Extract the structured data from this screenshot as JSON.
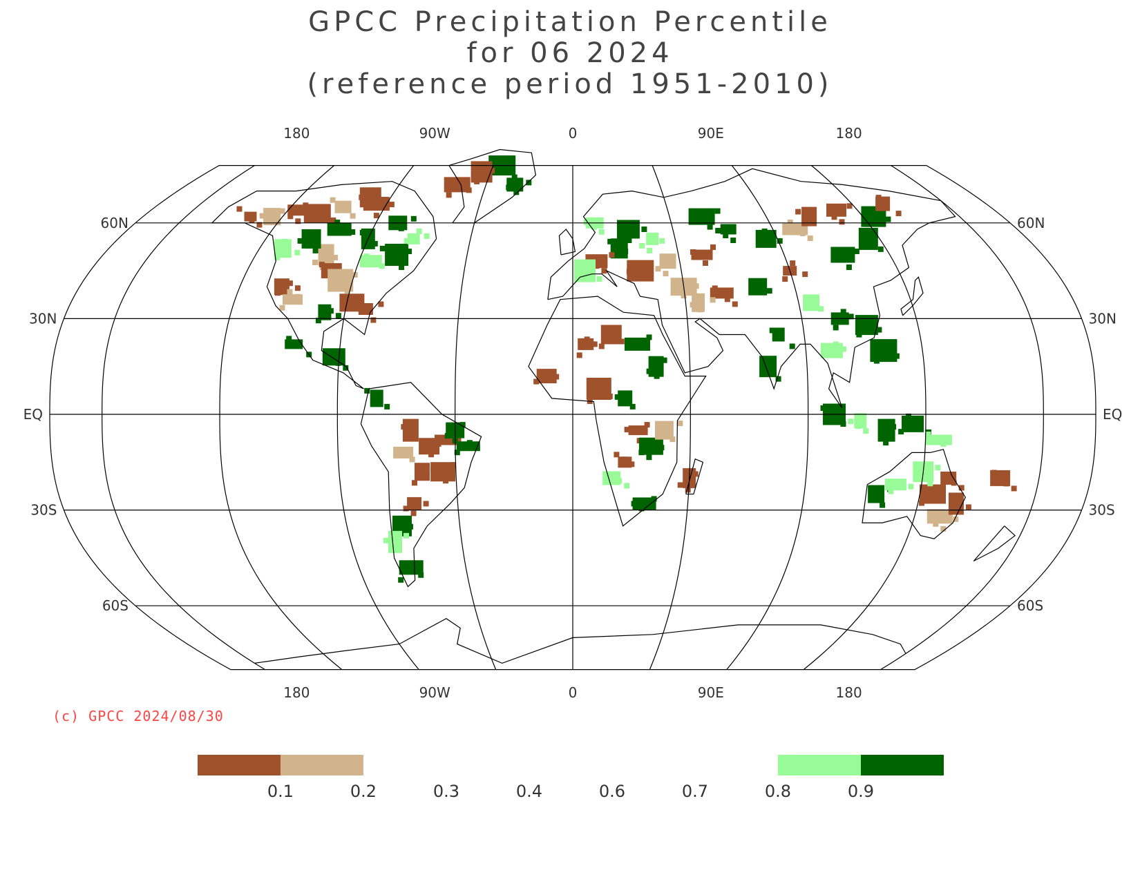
{
  "title": {
    "line1": "GPCC Precipitation Percentile",
    "line2": "for 06 2024",
    "line3": "(reference period 1951-2010)"
  },
  "map": {
    "projection": "Robinson",
    "lon_labels_top": [
      "180",
      "90W",
      "0",
      "90E",
      "180"
    ],
    "lon_labels_bottom": [
      "180",
      "90W",
      "0",
      "90E",
      "180"
    ],
    "lat_labels_left": [
      "60N",
      "30N",
      "EQ",
      "30S",
      "60S"
    ],
    "lat_labels_right": [
      "60N",
      "30N",
      "EQ",
      "30S",
      "60S"
    ],
    "colors": {
      "very_dry": "#a0522d",
      "dry": "#d2b48c",
      "wet": "#98fb98",
      "very_wet": "#006400",
      "grid": "#000000"
    }
  },
  "copyright": "(c) GPCC 2024/08/30",
  "legend": {
    "ticks": [
      "0.1",
      "0.2",
      "0.3",
      "0.4",
      "0.6",
      "0.7",
      "0.8",
      "0.9"
    ],
    "colored_segments": [
      {
        "from_index": -1,
        "to_index": 0,
        "color": "#a0522d"
      },
      {
        "from_index": 0,
        "to_index": 1,
        "color": "#d2b48c"
      },
      {
        "from_index": 6,
        "to_index": 7,
        "color": "#98fb98"
      },
      {
        "from_index": 7,
        "to_index": 8,
        "color": "#006400"
      }
    ]
  }
}
